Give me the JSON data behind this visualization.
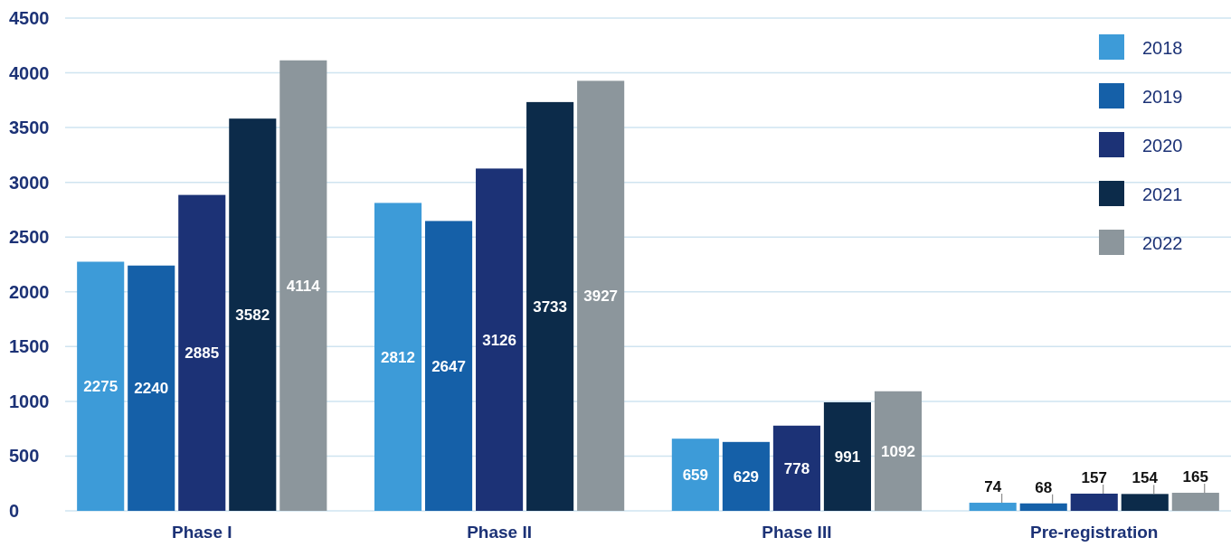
{
  "chart_data": {
    "type": "bar",
    "categories": [
      "Phase I",
      "Phase II",
      "Phase III",
      "Pre-registration"
    ],
    "series": [
      {
        "name": "2018",
        "color": "#3d9bd8",
        "values": [
          2275,
          2812,
          659,
          74
        ]
      },
      {
        "name": "2019",
        "color": "#1560a8",
        "values": [
          2240,
          2647,
          629,
          68
        ]
      },
      {
        "name": "2020",
        "color": "#1c3276",
        "values": [
          2885,
          3126,
          778,
          157
        ]
      },
      {
        "name": "2021",
        "color": "#0c2b4a",
        "values": [
          3582,
          3733,
          991,
          154
        ]
      },
      {
        "name": "2022",
        "color": "#8c969c",
        "values": [
          4114,
          3927,
          1092,
          165
        ]
      }
    ],
    "ylim": [
      0,
      4500
    ],
    "yticks": [
      0,
      500,
      1000,
      1500,
      2000,
      2500,
      3000,
      3500,
      4000,
      4500
    ],
    "grid": "y",
    "legend": "top right",
    "data_labels": true
  }
}
